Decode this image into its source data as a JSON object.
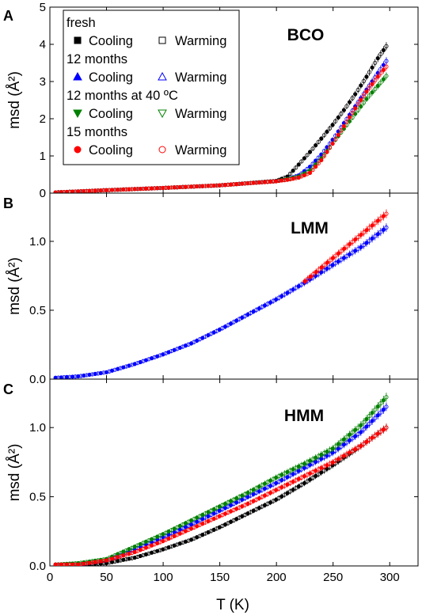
{
  "chart_data": [
    {
      "panel": "A",
      "type": "scatter",
      "title": "BCO",
      "xlabel": "T (K)",
      "ylabel": "msd (Å²)",
      "xlim": [
        0,
        325
      ],
      "ylim": [
        0,
        5
      ],
      "xticks": [
        0,
        50,
        100,
        150,
        200,
        250,
        300
      ],
      "yticks": [
        "0",
        "1",
        "2",
        "3",
        "4",
        "5"
      ],
      "grid": false,
      "legend_position": "top-left",
      "legend": [
        {
          "group": "fresh",
          "cooling_label": "Cooling",
          "warming_label": "Warming",
          "color": "#000000",
          "cooling_marker": "square",
          "warming_marker": "square-open"
        },
        {
          "group": "12 months",
          "cooling_label": "Cooling",
          "warming_label": "Warming",
          "color": "#0000ff",
          "cooling_marker": "triangle-up",
          "warming_marker": "triangle-up-open"
        },
        {
          "group": "12 months at 40 ºC",
          "cooling_label": "Cooling",
          "warming_label": "Warming",
          "color": "#008000",
          "cooling_marker": "triangle-down",
          "warming_marker": "triangle-down-open"
        },
        {
          "group": "15 months",
          "cooling_label": "Cooling",
          "warming_label": "Warming",
          "color": "#ff0000",
          "cooling_marker": "circle",
          "warming_marker": "circle-open"
        }
      ],
      "series": [
        {
          "name": "fresh",
          "color": "#000000",
          "x": [
            5,
            50,
            100,
            150,
            200,
            210,
            220,
            230,
            240,
            250,
            260,
            270,
            280,
            290,
            297
          ],
          "y": [
            0.02,
            0.08,
            0.14,
            0.21,
            0.33,
            0.45,
            0.78,
            1.12,
            1.48,
            1.85,
            2.25,
            2.68,
            3.15,
            3.65,
            3.95
          ]
        },
        {
          "name": "12 months",
          "color": "#0000ff",
          "x": [
            5,
            50,
            100,
            150,
            200,
            210,
            220,
            230,
            240,
            250,
            260,
            270,
            280,
            290,
            297
          ],
          "y": [
            0.02,
            0.08,
            0.14,
            0.21,
            0.32,
            0.38,
            0.48,
            0.72,
            1.05,
            1.45,
            1.9,
            2.35,
            2.8,
            3.25,
            3.55
          ]
        },
        {
          "name": "12 months at 40 ºC",
          "color": "#008000",
          "x": [
            5,
            50,
            100,
            150,
            200,
            210,
            220,
            230,
            240,
            250,
            260,
            270,
            280,
            290,
            297
          ],
          "y": [
            0.02,
            0.08,
            0.14,
            0.21,
            0.32,
            0.38,
            0.45,
            0.62,
            0.95,
            1.35,
            1.75,
            2.15,
            2.55,
            2.9,
            3.15
          ]
        },
        {
          "name": "15 months",
          "color": "#ff0000",
          "x": [
            5,
            50,
            100,
            150,
            200,
            210,
            220,
            230,
            240,
            250,
            260,
            270,
            280,
            290,
            297
          ],
          "y": [
            0.02,
            0.08,
            0.14,
            0.21,
            0.32,
            0.36,
            0.42,
            0.55,
            0.9,
            1.35,
            1.82,
            2.3,
            2.75,
            3.15,
            3.4
          ]
        }
      ]
    },
    {
      "panel": "B",
      "type": "scatter",
      "title": "LMM",
      "xlabel": "T (K)",
      "ylabel": "msd (Å²)",
      "xlim": [
        0,
        325
      ],
      "ylim": [
        0,
        1.35
      ],
      "xticks": [
        0,
        50,
        100,
        150,
        200,
        250,
        300
      ],
      "yticks": [
        "0.0",
        "0.5",
        "1.0"
      ],
      "grid": false,
      "series": [
        {
          "name": "12 months",
          "color": "#0000ff",
          "x": [
            5,
            25,
            50,
            75,
            100,
            125,
            150,
            175,
            200,
            225,
            250,
            275,
            297
          ],
          "y": [
            0.01,
            0.02,
            0.05,
            0.11,
            0.18,
            0.26,
            0.36,
            0.47,
            0.58,
            0.7,
            0.83,
            0.96,
            1.1
          ]
        },
        {
          "name": "15 months",
          "color": "#ff0000",
          "x": [
            225,
            297
          ],
          "y": [
            0.71,
            1.2
          ]
        }
      ]
    },
    {
      "panel": "C",
      "type": "scatter",
      "title": "HMM",
      "xlabel": "T (K)",
      "ylabel": "msd (Å²)",
      "xlim": [
        0,
        325
      ],
      "ylim": [
        0,
        1.35
      ],
      "xticks": [
        "0",
        "50",
        "100",
        "150",
        "200",
        "250",
        "300"
      ],
      "yticks": [
        "0.0",
        "0.5",
        "1.0"
      ],
      "grid": false,
      "series": [
        {
          "name": "fresh",
          "color": "#000000",
          "x": [
            5,
            25,
            50,
            75,
            100,
            125,
            150,
            175,
            200,
            225,
            250,
            275,
            297
          ],
          "y": [
            0.01,
            0.01,
            0.02,
            0.06,
            0.12,
            0.19,
            0.28,
            0.38,
            0.48,
            0.6,
            0.73,
            0.87,
            1.0
          ]
        },
        {
          "name": "12 months",
          "color": "#0000ff",
          "x": [
            5,
            25,
            50,
            75,
            100,
            125,
            150,
            175,
            200,
            225,
            250,
            275,
            297
          ],
          "y": [
            0.01,
            0.01,
            0.04,
            0.12,
            0.21,
            0.3,
            0.4,
            0.5,
            0.6,
            0.71,
            0.82,
            0.97,
            1.15
          ]
        },
        {
          "name": "12 months at 40 ºC",
          "color": "#008000",
          "x": [
            5,
            25,
            50,
            75,
            100,
            125,
            150,
            175,
            200,
            225,
            250,
            275,
            297
          ],
          "y": [
            0.01,
            0.02,
            0.05,
            0.14,
            0.23,
            0.33,
            0.43,
            0.53,
            0.64,
            0.74,
            0.85,
            1.02,
            1.22
          ]
        },
        {
          "name": "15 months",
          "color": "#ff0000",
          "x": [
            5,
            25,
            50,
            75,
            100,
            125,
            150,
            175,
            200,
            225,
            250,
            275,
            297
          ],
          "y": [
            0.01,
            0.01,
            0.04,
            0.1,
            0.18,
            0.27,
            0.36,
            0.45,
            0.55,
            0.65,
            0.75,
            0.87,
            1.0
          ]
        }
      ]
    }
  ]
}
